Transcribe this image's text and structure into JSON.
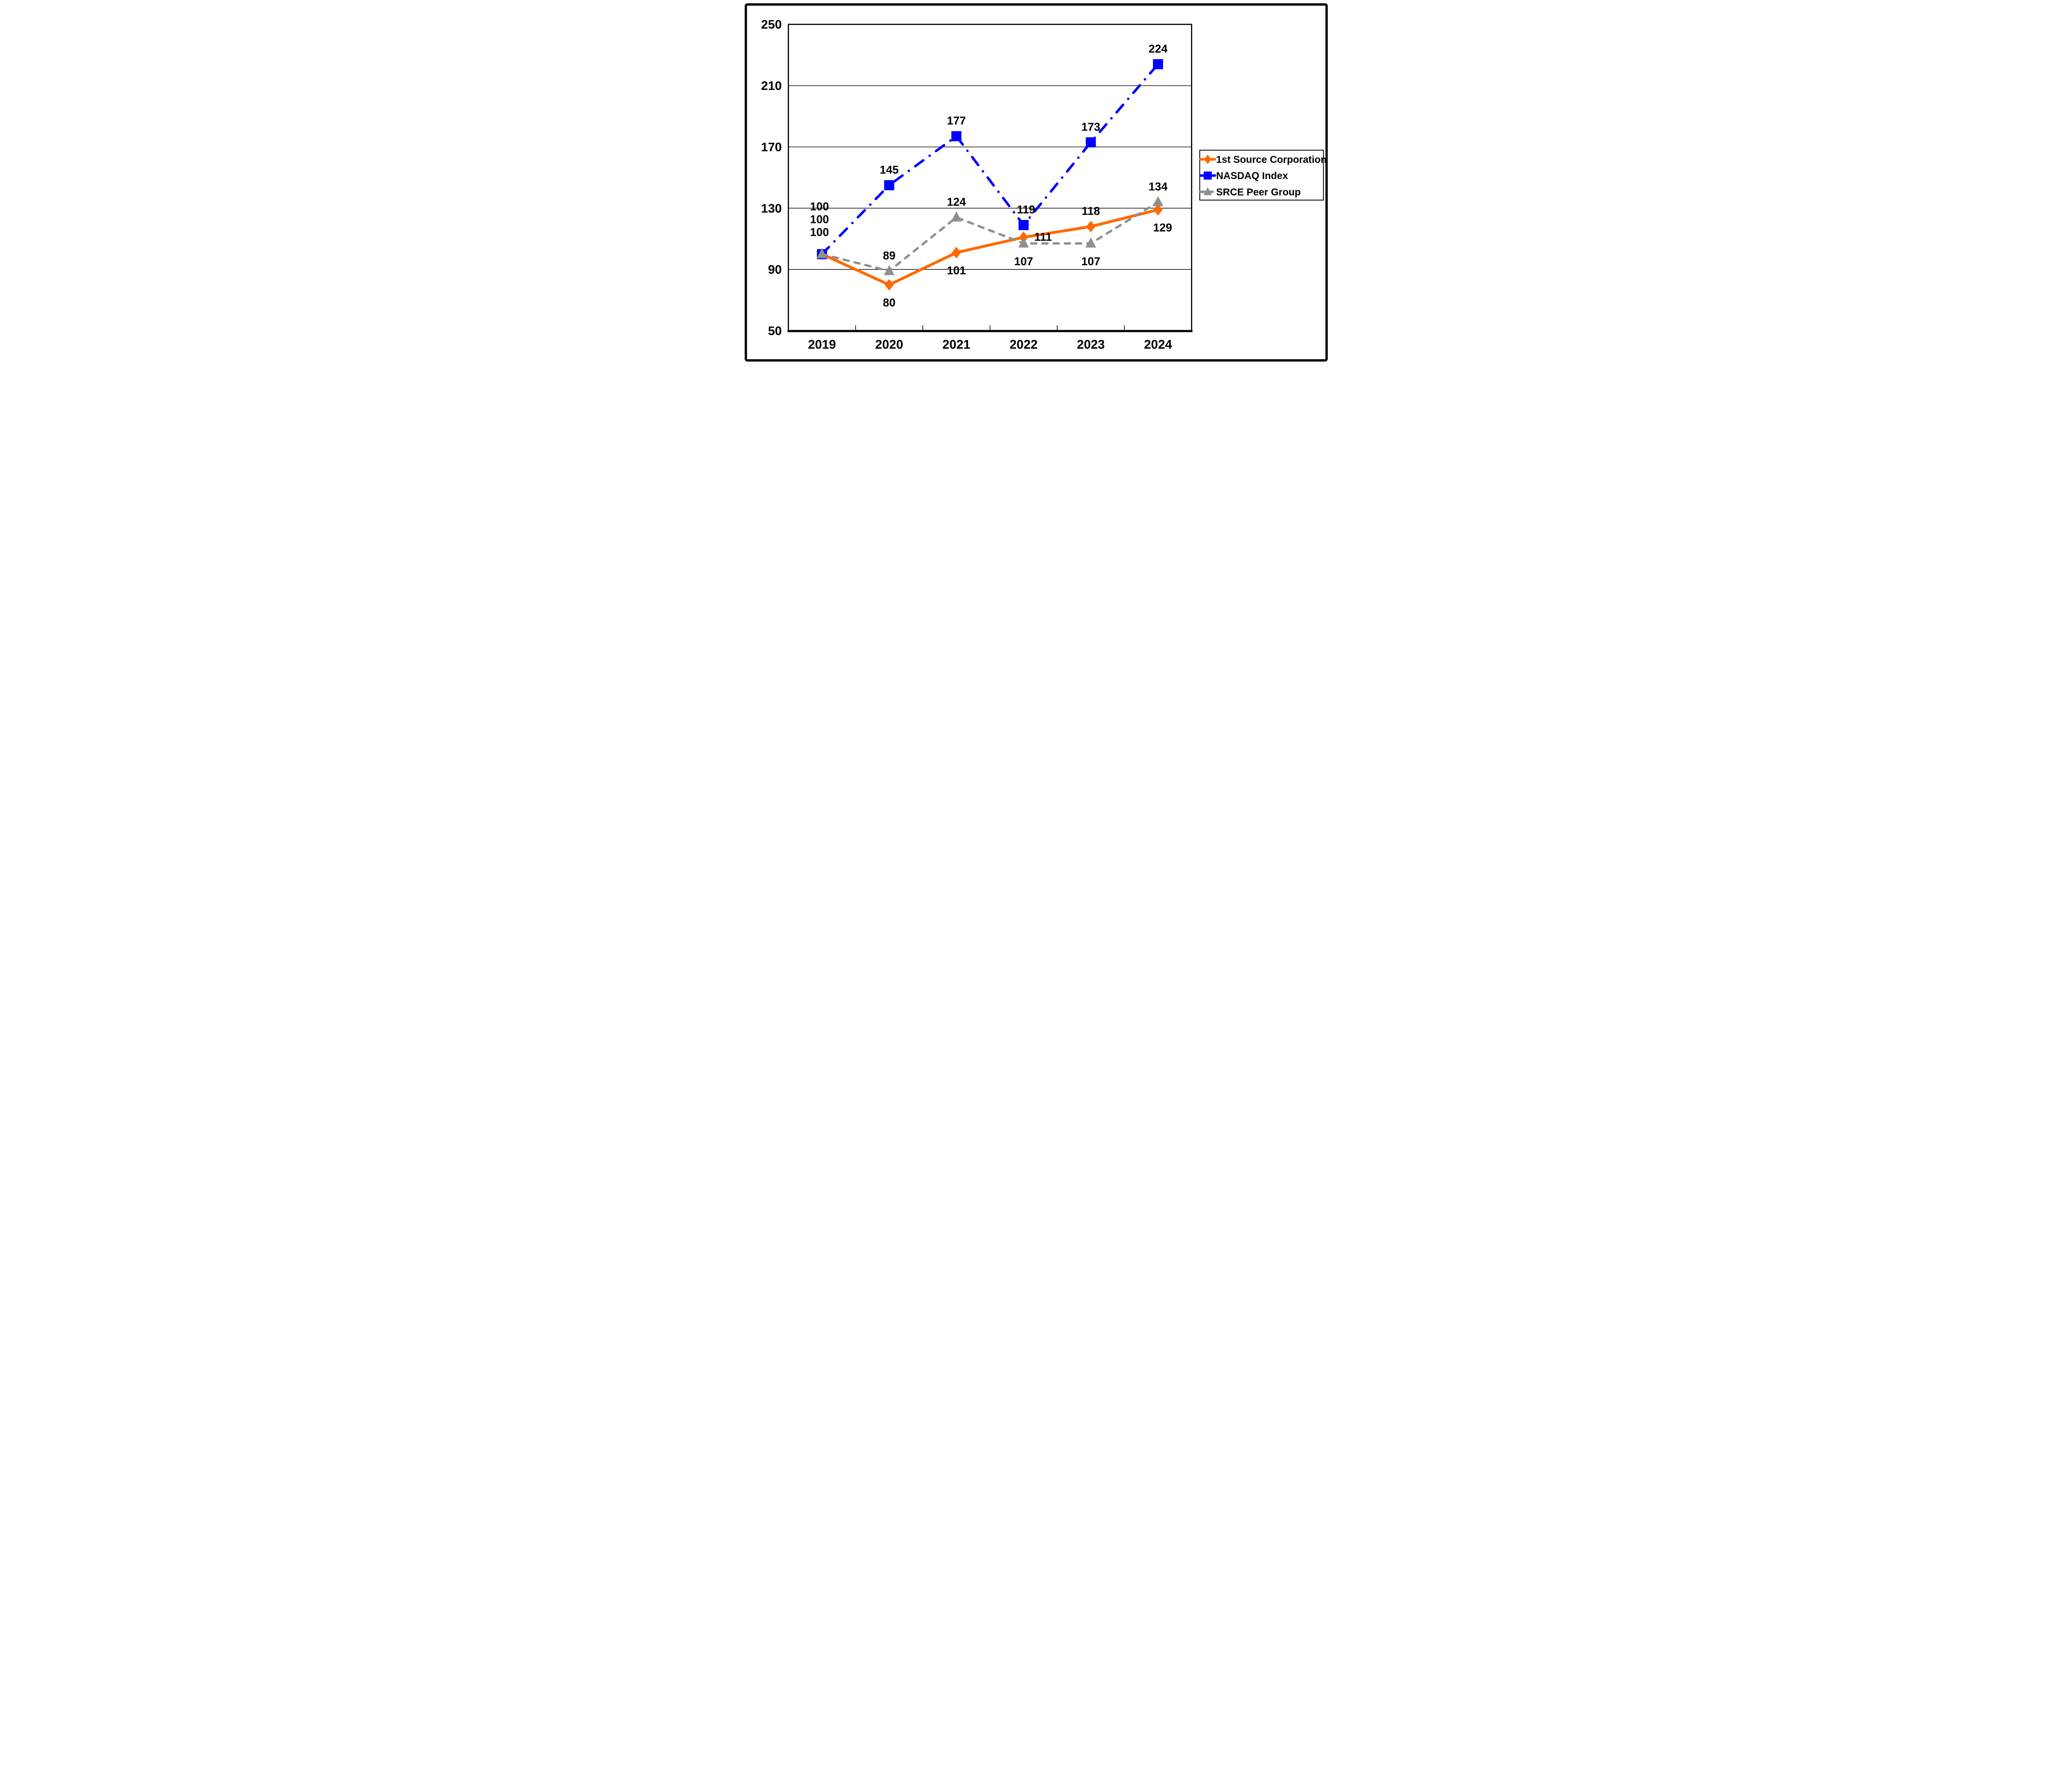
{
  "figure": {
    "background": "#FFFFFF",
    "border_color": "#000000"
  },
  "chart_data": {
    "type": "line",
    "title": "",
    "categories": [
      "2019",
      "2020",
      "2021",
      "2022",
      "2023",
      "2024"
    ],
    "y_axis": {
      "min": 50,
      "max": 250,
      "ticks": [
        50,
        90,
        130,
        170,
        210,
        250
      ],
      "tick_labels": [
        "50",
        "90",
        "130",
        "170",
        "210",
        "250"
      ]
    },
    "grid": true,
    "legend": {
      "position": "right",
      "border": true,
      "entries": [
        "1st Source Corporation",
        "NASDAQ Index",
        "SRCE Peer Group"
      ]
    },
    "colors": {
      "axis": "#000000",
      "grid": "#000000",
      "text": "#000000",
      "series_orange": "#FF6900",
      "series_blue": "#0000FF",
      "series_gray": "#8F8F8F"
    },
    "series": [
      {
        "name": "1st Source Corporation",
        "color": "#FF6900",
        "marker": "diamond",
        "line_style": "solid",
        "values": [
          100,
          80,
          101,
          111,
          118,
          129
        ],
        "point_labels": [
          {
            "text": "100",
            "placement": "stack-bottom"
          },
          {
            "text": "80",
            "placement": "below"
          },
          {
            "text": "101",
            "placement": "below"
          },
          {
            "text": "111",
            "placement": "right"
          },
          {
            "text": "118",
            "placement": "above"
          },
          {
            "text": "129",
            "placement": "below-right"
          }
        ]
      },
      {
        "name": "NASDAQ Index",
        "color": "#0000FF",
        "marker": "square",
        "line_style": "dash-dot",
        "values": [
          100,
          145,
          177,
          119,
          173,
          224
        ],
        "point_labels": [
          {
            "text": "100",
            "placement": "stack-top"
          },
          {
            "text": "145",
            "placement": "above"
          },
          {
            "text": "177",
            "placement": "above"
          },
          {
            "text": "119",
            "placement": "above-right"
          },
          {
            "text": "173",
            "placement": "above"
          },
          {
            "text": "224",
            "placement": "above"
          }
        ]
      },
      {
        "name": "SRCE Peer Group",
        "color": "#8F8F8F",
        "marker": "triangle",
        "line_style": "dashed",
        "values": [
          100,
          89,
          124,
          107,
          107,
          134
        ],
        "point_labels": [
          {
            "text": "100",
            "placement": "stack-middle"
          },
          {
            "text": "89",
            "placement": "above"
          },
          {
            "text": "124",
            "placement": "above"
          },
          {
            "text": "107",
            "placement": "below"
          },
          {
            "text": "107",
            "placement": "below"
          },
          {
            "text": "134",
            "placement": "above"
          }
        ]
      }
    ]
  }
}
